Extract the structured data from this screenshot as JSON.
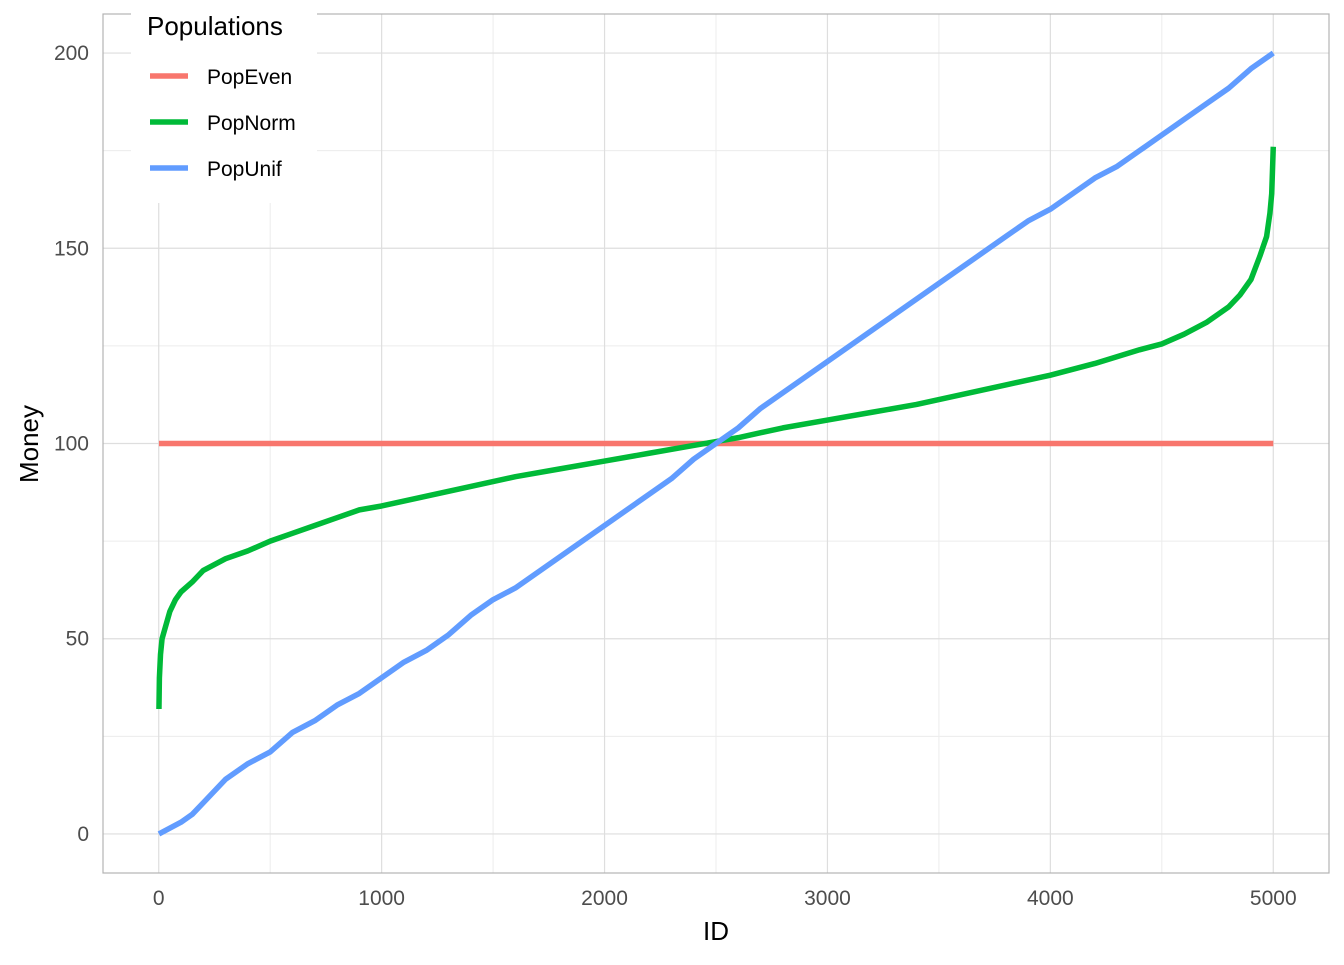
{
  "chart_data": {
    "type": "line",
    "title": "",
    "xlabel": "ID",
    "ylabel": "Money",
    "xlim": [
      -250,
      5250
    ],
    "ylim": [
      -10,
      210
    ],
    "x_ticks": [
      0,
      1000,
      2000,
      3000,
      4000,
      5000
    ],
    "y_ticks": [
      0,
      50,
      100,
      150,
      200
    ],
    "x_tick_labels": [
      "0",
      "1000",
      "2000",
      "3000",
      "4000",
      "5000"
    ],
    "y_tick_labels": [
      "0",
      "50",
      "100",
      "150",
      "200"
    ],
    "grid": true,
    "legend": {
      "title": "Populations",
      "placement": "top-left"
    },
    "series": [
      {
        "name": "PopEven",
        "color": "#F8766D",
        "x": [
          1,
          5000
        ],
        "y": [
          100,
          100
        ]
      },
      {
        "name": "PopNorm",
        "color": "#00BA38",
        "x": [
          1,
          3,
          8,
          15,
          30,
          50,
          75,
          100,
          150,
          200,
          250,
          300,
          400,
          500,
          600,
          700,
          800,
          900,
          1000,
          1200,
          1400,
          1600,
          1800,
          2000,
          2200,
          2400,
          2500,
          2600,
          2800,
          3000,
          3200,
          3400,
          3600,
          3800,
          4000,
          4200,
          4400,
          4500,
          4600,
          4700,
          4800,
          4850,
          4900,
          4940,
          4970,
          4985,
          4993,
          5000
        ],
        "y": [
          32,
          40,
          46,
          50,
          53,
          57,
          60,
          62,
          64.5,
          67.5,
          69,
          70.5,
          72.5,
          75,
          77,
          79,
          81,
          83,
          84,
          86.5,
          89,
          91.5,
          93.5,
          95.5,
          97.5,
          99.5,
          100.5,
          101.5,
          104,
          106,
          108,
          110,
          112.5,
          115,
          117.5,
          120.5,
          124,
          125.5,
          128,
          131,
          135,
          138,
          142,
          148,
          153,
          159,
          164,
          176
        ]
      },
      {
        "name": "PopUnif",
        "color": "#619CFF",
        "x": [
          1,
          100,
          150,
          200,
          300,
          400,
          500,
          600,
          700,
          800,
          900,
          1000,
          1100,
          1200,
          1300,
          1400,
          1500,
          1600,
          1700,
          1800,
          1900,
          2000,
          2100,
          2200,
          2300,
          2400,
          2500,
          2600,
          2700,
          2800,
          2900,
          3000,
          3100,
          3200,
          3300,
          3400,
          3500,
          3600,
          3700,
          3800,
          3900,
          4000,
          4100,
          4200,
          4300,
          4400,
          4500,
          4600,
          4700,
          4800,
          4900,
          5000
        ],
        "y": [
          0,
          3,
          5,
          8,
          14,
          18,
          21,
          26,
          29,
          33,
          36,
          40,
          44,
          47,
          51,
          56,
          60,
          63,
          67,
          71,
          75,
          79,
          83,
          87,
          91,
          96,
          100,
          104,
          109,
          113,
          117,
          121,
          125,
          129,
          133,
          137,
          141,
          145,
          149,
          153,
          157,
          160,
          164,
          168,
          171,
          175,
          179,
          183,
          187,
          191,
          196,
          200
        ]
      }
    ]
  }
}
